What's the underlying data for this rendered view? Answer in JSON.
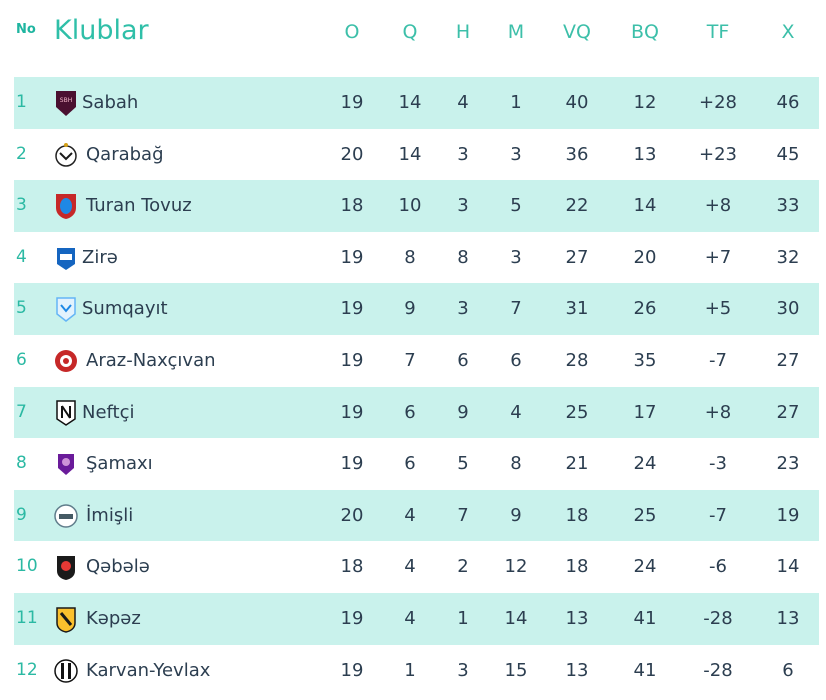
{
  "header": {
    "no_label": "No",
    "title": "Klublar",
    "columns": [
      "O",
      "Q",
      "H",
      "M",
      "VQ",
      "BQ",
      "TF",
      "X"
    ]
  },
  "rows": [
    {
      "pos": "1",
      "club": "Sabah",
      "logo": "sabah-logo",
      "stats": [
        "19",
        "14",
        "4",
        "1",
        "40",
        "12",
        "+28",
        "46"
      ]
    },
    {
      "pos": "2",
      "club": "Qarabağ",
      "logo": "qarabag-logo",
      "stats": [
        "20",
        "14",
        "3",
        "3",
        "36",
        "13",
        "+23",
        "45"
      ]
    },
    {
      "pos": "3",
      "club": "Turan Tovuz",
      "logo": "turan-tovuz-logo",
      "stats": [
        "18",
        "10",
        "3",
        "5",
        "22",
        "14",
        "+8",
        "33"
      ]
    },
    {
      "pos": "4",
      "club": "Zirə",
      "logo": "zira-logo",
      "stats": [
        "19",
        "8",
        "8",
        "3",
        "27",
        "20",
        "+7",
        "32"
      ]
    },
    {
      "pos": "5",
      "club": "Sumqayıt",
      "logo": "sumqayit-logo",
      "stats": [
        "19",
        "9",
        "3",
        "7",
        "31",
        "26",
        "+5",
        "30"
      ]
    },
    {
      "pos": "6",
      "club": "Araz-Naxçıvan",
      "logo": "araz-naxcivan-logo",
      "stats": [
        "19",
        "7",
        "6",
        "6",
        "28",
        "35",
        "-7",
        "27"
      ]
    },
    {
      "pos": "7",
      "club": "Neftçi",
      "logo": "neftci-logo",
      "stats": [
        "19",
        "6",
        "9",
        "4",
        "25",
        "17",
        "+8",
        "27"
      ]
    },
    {
      "pos": "8",
      "club": "Şamaxı",
      "logo": "samaxi-logo",
      "stats": [
        "19",
        "6",
        "5",
        "8",
        "21",
        "24",
        "-3",
        "23"
      ]
    },
    {
      "pos": "9",
      "club": "İmişli",
      "logo": "imisli-logo",
      "stats": [
        "20",
        "4",
        "7",
        "9",
        "18",
        "25",
        "-7",
        "19"
      ]
    },
    {
      "pos": "10",
      "club": "Qəbələ",
      "logo": "qabala-logo",
      "stats": [
        "18",
        "4",
        "2",
        "12",
        "18",
        "24",
        "-6",
        "14"
      ]
    },
    {
      "pos": "11",
      "club": "Kəpəz",
      "logo": "kapaz-logo",
      "stats": [
        "19",
        "4",
        "1",
        "14",
        "13",
        "41",
        "-28",
        "13"
      ]
    },
    {
      "pos": "12",
      "club": "Karvan-Yevlax",
      "logo": "karvan-yevlax-logo",
      "stats": [
        "19",
        "1",
        "3",
        "15",
        "13",
        "41",
        "-28",
        "6"
      ]
    }
  ]
}
